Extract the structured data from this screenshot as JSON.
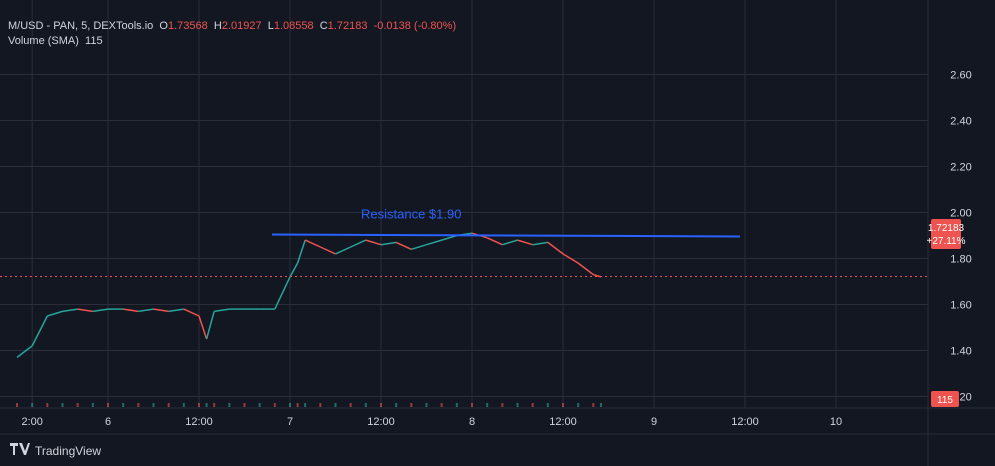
{
  "legend": {
    "symbol": "M/USD - PAN, 5, DEXTools.io",
    "open_label": "O",
    "open": "1.73568",
    "high_label": "H",
    "high": "2.01927",
    "low_label": "L",
    "low": "1.08558",
    "close_label": "C",
    "close": "1.72183",
    "change": "-0.0138 (-0.80%)",
    "volume_label": "Volume (SMA)",
    "volume": "115"
  },
  "price_tag": {
    "price": "1.72183",
    "change_pct": "+27.11%"
  },
  "volume_tag": "115",
  "annotation": {
    "text": "Resistance $1.90",
    "price": 1.9
  },
  "footer": {
    "brand": "TradingView"
  },
  "colors": {
    "bg": "#131722",
    "up": "#26a69a",
    "down": "#ef5350",
    "resistance": "#2962ff",
    "grid": "#2a2e39"
  },
  "chart_data": {
    "type": "line",
    "title": "M/USD - PAN, 5, DEXTools.io",
    "y_ticks": [
      "1.20",
      "1.40",
      "1.60",
      "1.80",
      "2.00",
      "2.20",
      "2.40",
      "2.60"
    ],
    "x_ticks": [
      "2:00",
      "6",
      "12:00",
      "7",
      "12:00",
      "8",
      "12:00",
      "9",
      "12:00",
      "10"
    ],
    "ylim": [
      1.0,
      2.65
    ],
    "series": [
      {
        "x": [
          "5 12:00",
          "5 14:00",
          "5 16:00",
          "5 18:00",
          "5 20:00",
          "5 22:00",
          "6 00:00",
          "6 02:00",
          "6 04:00",
          "6 06:00",
          "6 08:00",
          "6 10:00",
          "6 12:00",
          "6 13:00",
          "6 14:00",
          "6 16:00",
          "6 18:00",
          "6 20:00",
          "6 22:00",
          "7 00:00",
          "7 01:00",
          "7 02:00",
          "7 04:00",
          "7 06:00",
          "7 08:00",
          "7 10:00",
          "7 12:00",
          "7 14:00",
          "7 16:00",
          "7 18:00",
          "7 20:00",
          "7 22:00",
          "8 00:00",
          "8 02:00",
          "8 04:00",
          "8 06:00",
          "8 08:00",
          "8 10:00",
          "8 12:00",
          "8 14:00",
          "8 16:00",
          "8 17:00"
        ],
        "values": [
          1.37,
          1.42,
          1.55,
          1.57,
          1.58,
          1.57,
          1.58,
          1.58,
          1.57,
          1.58,
          1.57,
          1.58,
          1.55,
          1.45,
          1.57,
          1.58,
          1.58,
          1.58,
          1.58,
          1.72,
          1.78,
          1.88,
          1.85,
          1.82,
          1.85,
          1.88,
          1.86,
          1.87,
          1.84,
          1.86,
          1.88,
          1.9,
          1.91,
          1.89,
          1.86,
          1.88,
          1.86,
          1.87,
          1.82,
          1.78,
          1.73,
          1.72
        ]
      }
    ],
    "volume_current": 115,
    "grid": true
  }
}
